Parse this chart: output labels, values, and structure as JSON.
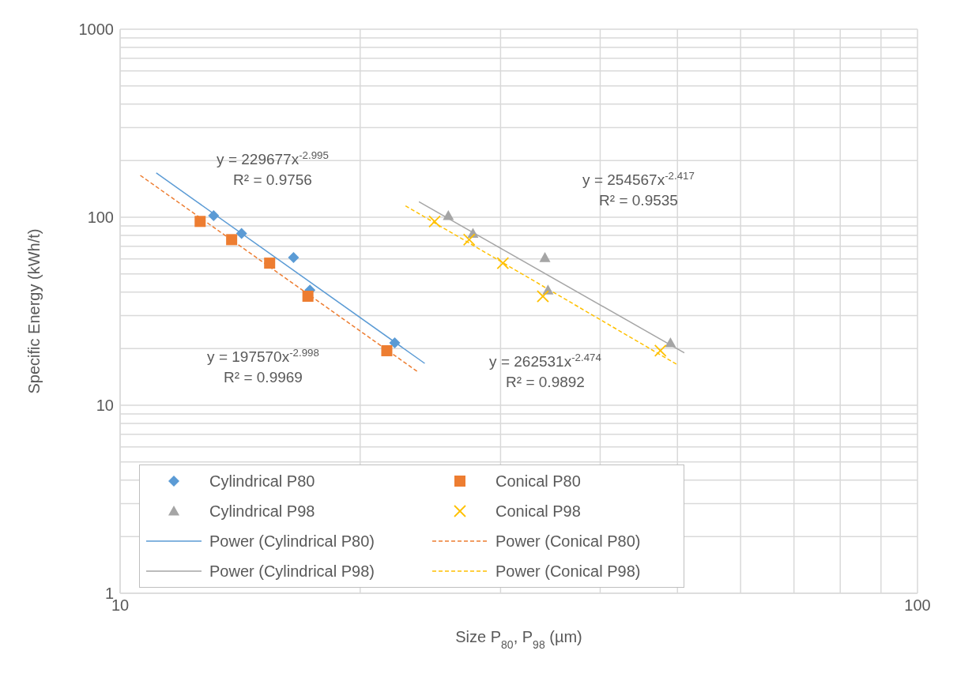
{
  "chart_data": {
    "type": "scatter",
    "xlabel": "Size P$_{80}$, P$_{98}$ (µm)",
    "ylabel": "Specific Energy (kWh/t)",
    "log": "xy",
    "xlim": [
      10,
      100
    ],
    "ylim": [
      1,
      1000
    ],
    "xticks": [
      10,
      {
        "value": 20,
        "label": null
      },
      {
        "value": 30,
        "label": null
      },
      {
        "value": 40,
        "label": null
      },
      {
        "value": 50,
        "label": null
      },
      {
        "value": 60,
        "label": null
      },
      {
        "value": 70,
        "label": null
      },
      {
        "value": 80,
        "label": null
      },
      {
        "value": 90,
        "label": null
      },
      100
    ],
    "yticks": [
      1,
      {
        "value": 2,
        "label": null
      },
      {
        "value": 3,
        "label": null
      },
      {
        "value": 4,
        "label": null
      },
      {
        "value": 5,
        "label": null
      },
      {
        "value": 6,
        "label": null
      },
      {
        "value": 7,
        "label": null
      },
      {
        "value": 8,
        "label": null
      },
      {
        "value": 9,
        "label": null
      },
      10,
      {
        "value": 20,
        "label": null
      },
      {
        "value": 30,
        "label": null
      },
      {
        "value": 40,
        "label": null
      },
      {
        "value": 50,
        "label": null
      },
      {
        "value": 60,
        "label": null
      },
      {
        "value": 70,
        "label": null
      },
      {
        "value": 80,
        "label": null
      },
      {
        "value": 90,
        "label": null
      },
      100,
      {
        "value": 200,
        "label": null
      },
      {
        "value": 300,
        "label": null
      },
      {
        "value": 400,
        "label": null
      },
      {
        "value": 500,
        "label": null
      },
      {
        "value": 600,
        "label": null
      },
      {
        "value": 700,
        "label": null
      },
      {
        "value": 800,
        "label": null
      },
      {
        "value": 900,
        "label": null
      },
      1000
    ],
    "grid": true,
    "legend": "bottom left",
    "series": [
      {
        "name": "Cylindrical P80",
        "marker": "diamond",
        "color": "#5b9bd5",
        "x": [
          13.1,
          14.2,
          16.5,
          17.3,
          22.1
        ],
        "values": [
          102,
          82,
          61,
          41,
          21.5
        ]
      },
      {
        "name": "Conical P80",
        "marker": "square",
        "color": "#ed7d31",
        "x": [
          12.6,
          13.8,
          15.4,
          17.2,
          21.6
        ],
        "values": [
          95,
          76,
          57,
          38,
          19.5
        ]
      },
      {
        "name": "Cylindrical P98",
        "marker": "triangle",
        "color": "#a5a5a5",
        "x": [
          25.8,
          27.7,
          34.1,
          34.4,
          49
        ],
        "values": [
          102,
          82,
          61,
          41,
          21.5
        ]
      },
      {
        "name": "Conical P98",
        "marker": "cross",
        "color": "#ffc000",
        "x": [
          24.8,
          27.4,
          30.2,
          33.9,
          47.6
        ],
        "values": [
          95,
          76,
          57,
          38,
          19.5
        ]
      },
      {
        "name": "Power (Cylindrical P80)",
        "type": "line",
        "marker": "none",
        "line_style": "solid",
        "color": "#5b9bd5",
        "x": [
          11.1,
          24.1
        ],
        "values": [
          172,
          16.7
        ]
      },
      {
        "name": "Power (Conical P80)",
        "type": "line",
        "marker": "none",
        "line_style": "dashed",
        "color": "#ed7d31",
        "x": [
          10.6,
          23.6
        ],
        "values": [
          167,
          15.1
        ]
      },
      {
        "name": "Power (Cylindrical P98)",
        "type": "line",
        "marker": "none",
        "line_style": "solid",
        "color": "#a5a5a5",
        "x": [
          23.7,
          51
        ],
        "values": [
          121,
          19
        ]
      },
      {
        "name": "Power (Conical P98)",
        "type": "line",
        "marker": "none",
        "line_style": "dashed",
        "color": "#ffc000",
        "x": [
          22.8,
          49.9
        ],
        "values": [
          115,
          16.5
        ]
      }
    ],
    "annotations": [
      "y = 229677x$^{-2.995}$\nR² = 0.9756",
      "y = 197570x$^{-2.998}$\nR² = 0.9969",
      "y = 254567x$^{-2.417}$\nR² = 0.9535",
      "y = 262531x$^{-2.474}$\nR² = 0.9892"
    ]
  }
}
